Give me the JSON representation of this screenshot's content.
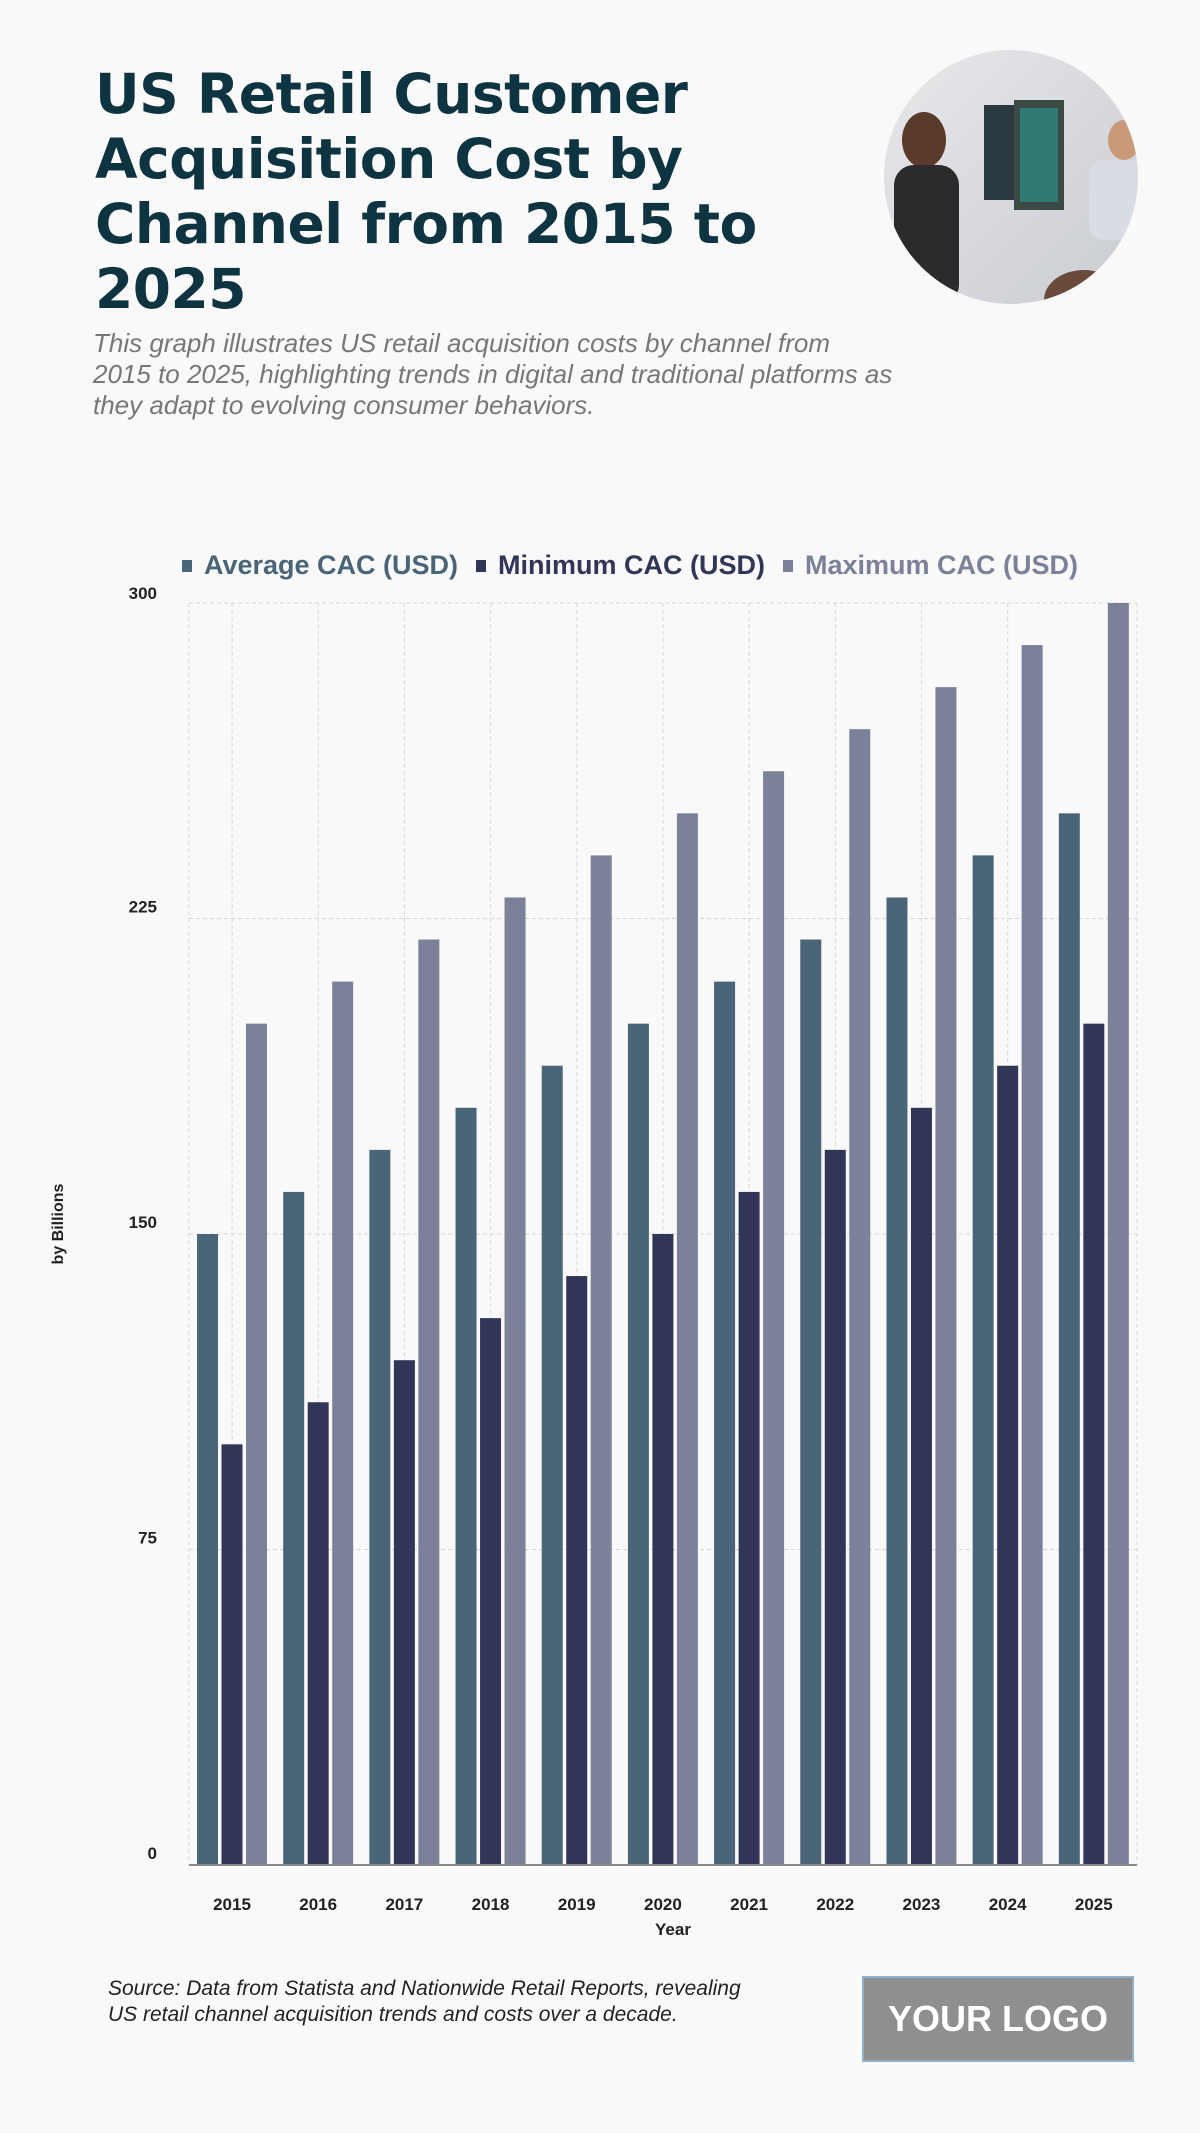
{
  "title": "US Retail Customer Acquisition Cost by Channel from 2015 to 2025",
  "subtitle": "This graph illustrates US retail acquisition costs by channel from 2015 to 2025, highlighting trends in digital and traditional platforms as they adapt to evolving consumer behaviors.",
  "source": "Source: Data from Statista and Nationwide Retail Reports, revealing US retail channel acquisition trends and costs over a decade.",
  "logo": "YOUR LOGO",
  "chart_data": {
    "type": "bar",
    "title": "US Retail Customer Acquisition Cost by Channel from 2015 to 2025",
    "xlabel": "Year",
    "ylabel": "by Billions",
    "ylim": [
      0,
      300
    ],
    "yticks": [
      0,
      75,
      150,
      225,
      300
    ],
    "grid": true,
    "legend_position": "top",
    "categories": [
      "2015",
      "2016",
      "2017",
      "2018",
      "2019",
      "2020",
      "2021",
      "2022",
      "2023",
      "2024",
      "2025"
    ],
    "series": [
      {
        "name": "Average CAC (USD)",
        "color": "#4a6577",
        "values": [
          150,
          160,
          170,
          180,
          190,
          200,
          210,
          220,
          230,
          240,
          250
        ]
      },
      {
        "name": "Minimum CAC (USD)",
        "color": "#313557",
        "values": [
          100,
          110,
          120,
          130,
          140,
          150,
          160,
          170,
          180,
          190,
          200
        ]
      },
      {
        "name": "Maximum CAC (USD)",
        "color": "#7a8199",
        "values": [
          200,
          210,
          220,
          230,
          240,
          250,
          260,
          270,
          280,
          290,
          300
        ]
      }
    ]
  }
}
